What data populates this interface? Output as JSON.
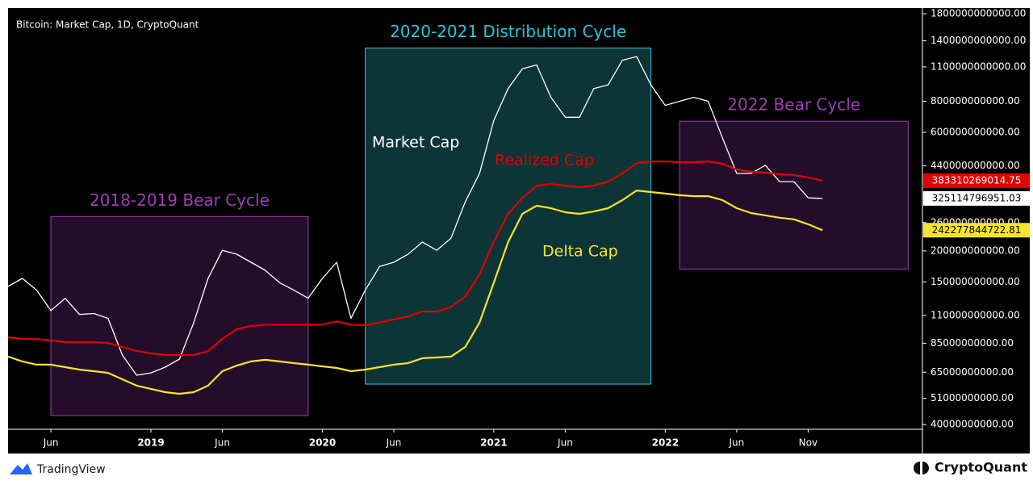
{
  "chart_data": {
    "type": "line",
    "title": "Bitcoin: Market Cap, 1D, CryptoQuant",
    "log_scale": true,
    "grid": false,
    "x": [
      "2018-03",
      "2018-04",
      "2018-05",
      "2018-06",
      "2018-07",
      "2018-08",
      "2018-09",
      "2018-10",
      "2018-11",
      "2018-12",
      "2019-01",
      "2019-02",
      "2019-03",
      "2019-04",
      "2019-05",
      "2019-06",
      "2019-07",
      "2019-08",
      "2019-09",
      "2019-10",
      "2019-11",
      "2019-12",
      "2020-01",
      "2020-02",
      "2020-03",
      "2020-04",
      "2020-05",
      "2020-06",
      "2020-07",
      "2020-08",
      "2020-09",
      "2020-10",
      "2020-11",
      "2020-12",
      "2021-01",
      "2021-02",
      "2021-03",
      "2021-04",
      "2021-05",
      "2021-06",
      "2021-07",
      "2021-08",
      "2021-09",
      "2021-10",
      "2021-11",
      "2021-12",
      "2022-01",
      "2022-02",
      "2022-03",
      "2022-04",
      "2022-05",
      "2022-06",
      "2022-07",
      "2022-08",
      "2022-09",
      "2022-10",
      "2022-11",
      "2022-12"
    ],
    "xlim": [
      "2018-03",
      "2023-07"
    ],
    "xticks": [
      {
        "value": "2018-06",
        "label": "Jun"
      },
      {
        "value": "2019-01",
        "label": "2019"
      },
      {
        "value": "2019-06",
        "label": "Jun"
      },
      {
        "value": "2020-01",
        "label": "2020"
      },
      {
        "value": "2020-06",
        "label": "Jun"
      },
      {
        "value": "2021-01",
        "label": "2021"
      },
      {
        "value": "2021-06",
        "label": "Jun"
      },
      {
        "value": "2022-01",
        "label": "2022"
      },
      {
        "value": "2022-06",
        "label": "Jun"
      },
      {
        "value": "2022-11",
        "label": "Nov"
      }
    ],
    "ylim": [
      38300000000,
      1897000000000
    ],
    "yticks": [
      {
        "value": 1800000000000,
        "label": "1800000000000.00"
      },
      {
        "value": 1400000000000,
        "label": "1400000000000.00"
      },
      {
        "value": 1100000000000,
        "label": "1100000000000.00"
      },
      {
        "value": 800000000000,
        "label": "800000000000.00"
      },
      {
        "value": 600000000000,
        "label": "600000000000.00"
      },
      {
        "value": 440000000000,
        "label": "440000000000.00"
      },
      {
        "value": 260000000000,
        "label": "260000000000.00"
      },
      {
        "value": 200000000000,
        "label": "200000000000.00"
      },
      {
        "value": 150000000000,
        "label": "150000000000.00"
      },
      {
        "value": 110000000000,
        "label": "110000000000.00"
      },
      {
        "value": 85000000000,
        "label": "85000000000.00"
      },
      {
        "value": 65000000000,
        "label": "65000000000.00"
      },
      {
        "value": 51000000000,
        "label": "51000000000.00"
      },
      {
        "value": 40000000000,
        "label": "40000000000.00"
      }
    ],
    "series": [
      {
        "name": "Market Cap",
        "color": "#ffffff",
        "values": [
          144000000000.0,
          155000000000.0,
          139000000000.0,
          115000000000.0,
          129000000000.0,
          111000000000.0,
          112000000000.0,
          107000000000.0,
          76200000000.0,
          63200000000.0,
          64600000000.0,
          68100000000.0,
          73400000000.0,
          103000000000.0,
          155000000000.0,
          201000000000.0,
          194000000000.0,
          180000000000.0,
          167000000000.0,
          149000000000.0,
          139000000000.0,
          129000000000.0,
          155000000000.0,
          180000000000.0,
          107000000000.0,
          139000000000.0,
          173000000000.0,
          180000000000.0,
          194000000000.0,
          217000000000.0,
          201000000000.0,
          225000000000.0,
          315000000000.0,
          410000000000.0,
          670000000000.0,
          900000000000.0,
          1080000000000.0,
          1120000000000.0,
          830000000000.0,
          690000000000.0,
          690000000000.0,
          900000000000.0,
          930000000000.0,
          1170000000000.0,
          1210000000000.0,
          930000000000.0,
          770000000000.0,
          800000000000.0,
          830000000000.0,
          800000000000.0,
          570000000000.0,
          410000000000.0,
          410000000000.0,
          442000000000.0,
          380000000000.0,
          380000000000.0,
          327000000000.0,
          325114796951.03
        ]
      },
      {
        "name": "Realized Cap",
        "color": "#e00000",
        "values": [
          89800000000.0,
          88500000000.0,
          88500000000.0,
          87200000000.0,
          85900000000.0,
          85900000000.0,
          85900000000.0,
          85200000000.0,
          82100000000.0,
          79100000000.0,
          77400000000.0,
          76200000000.0,
          76200000000.0,
          76200000000.0,
          79100000000.0,
          88500000000.0,
          96800000000.0,
          99700000000.0,
          101000000000.0,
          101000000000.0,
          101000000000.0,
          101000000000.0,
          101000000000.0,
          104000000000.0,
          101000000000.0,
          100500000000.0,
          103000000000.0,
          106000000000.0,
          109000000000.0,
          114000000000.0,
          114000000000.0,
          119000000000.0,
          131000000000.0,
          161000000000.0,
          217000000000.0,
          282000000000.0,
          327000000000.0,
          366000000000.0,
          372000000000.0,
          366000000000.0,
          361000000000.0,
          366000000000.0,
          380000000000.0,
          410000000000.0,
          451000000000.0,
          458000000000.0,
          458000000000.0,
          455000000000.0,
          455000000000.0,
          458000000000.0,
          448000000000.0,
          425000000000.0,
          416000000000.0,
          413000000000.0,
          407000000000.0,
          404000000000.0,
          395000000000.0,
          383310269014.75
        ]
      },
      {
        "name": "Delta Cap",
        "color": "#f5e52a",
        "values": [
          75100000000.0,
          71800000000.0,
          69700000000.0,
          69700000000.0,
          68100000000.0,
          66600000000.0,
          65600000000.0,
          64600000000.0,
          60900000000.0,
          57400000000.0,
          55700000000.0,
          54000000000.0,
          53200000000.0,
          54000000000.0,
          57400000000.0,
          65600000000.0,
          69100000000.0,
          71800000000.0,
          72900000000.0,
          71800000000.0,
          70700000000.0,
          69700000000.0,
          68600000000.0,
          67600000000.0,
          65600000000.0,
          66600000000.0,
          68100000000.0,
          69700000000.0,
          70700000000.0,
          74000000000.0,
          74500000000.0,
          75100000000.0,
          82100000000.0,
          103000000000.0,
          149000000000.0,
          217000000000.0,
          282000000000.0,
          304000000000.0,
          297000000000.0,
          286000000000.0,
          282000000000.0,
          288000000000.0,
          297000000000.0,
          320000000000.0,
          350000000000.0,
          345000000000.0,
          340000000000.0,
          335000000000.0,
          332000000000.0,
          332000000000.0,
          320000000000.0,
          297000000000.0,
          284000000000.0,
          278000000000.0,
          272000000000.0,
          268000000000.0,
          256000000000.0,
          242277844722.81
        ]
      }
    ],
    "annotations": [
      {
        "text": "2018-2019 Bear Cycle",
        "x": [
          "2018-06",
          "2019-12"
        ],
        "y": [
          43500000000,
          275000000000
        ],
        "color": "#a33cb8",
        "fill": "#2a0f33"
      },
      {
        "text": "2020-2021 Distribution Cycle",
        "x": [
          "2020-04",
          "2021-12"
        ],
        "y": [
          58200000000,
          1310000000000
        ],
        "color": "#26c6da",
        "fill": "#0f3d40"
      },
      {
        "text": "2022 Bear Cycle",
        "x": [
          "2022-02",
          "2023-06"
        ],
        "y": [
          169000000000,
          665000000000
        ],
        "color": "#a33cb8",
        "fill": "#2a0f33"
      }
    ]
  },
  "footer": {
    "left": "TradingView",
    "right": "CryptoQuant"
  }
}
